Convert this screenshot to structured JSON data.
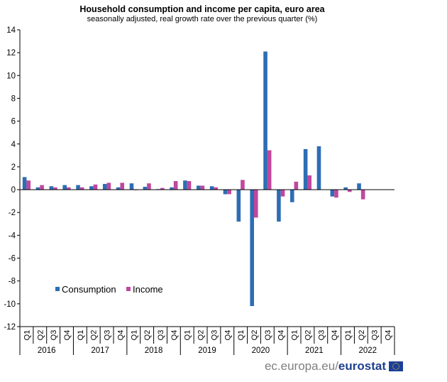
{
  "chart_data": {
    "type": "bar",
    "title": "Household consumption and income per capita, euro area",
    "subtitle": "seasonally adjusted, real growth rate over the previous quarter (%)",
    "ylim": [
      -12,
      14
    ],
    "yticks": [
      "14",
      "12",
      "10",
      "8",
      "6",
      "4",
      "2",
      "0",
      "-2",
      "-4",
      "-6",
      "-8",
      "-10",
      "-12"
    ],
    "quarters": [
      "Q1",
      "Q2",
      "Q3",
      "Q4"
    ],
    "years": [
      "2016",
      "2017",
      "2018",
      "2019",
      "2020",
      "2021",
      "2022"
    ],
    "categories": [
      "2016 Q1",
      "2016 Q2",
      "2016 Q3",
      "2016 Q4",
      "2017 Q1",
      "2017 Q2",
      "2017 Q3",
      "2017 Q4",
      "2018 Q1",
      "2018 Q2",
      "2018 Q3",
      "2018 Q4",
      "2019 Q1",
      "2019 Q2",
      "2019 Q3",
      "2019 Q4",
      "2020 Q1",
      "2020 Q2",
      "2020 Q3",
      "2020 Q4",
      "2021 Q1",
      "2021 Q2",
      "2021 Q3",
      "2021 Q4",
      "2022 Q1",
      "2022 Q2",
      "2022 Q3",
      "2022 Q4"
    ],
    "series": [
      {
        "name": "Consumption",
        "color": "#2e6db4",
        "values": [
          1.1,
          0.2,
          0.3,
          0.4,
          0.4,
          0.3,
          0.5,
          0.2,
          0.55,
          0.25,
          0.05,
          0.2,
          0.8,
          0.35,
          0.3,
          -0.4,
          -2.8,
          -10.2,
          12.1,
          -2.8,
          -1.1,
          3.55,
          3.8,
          -0.6,
          0.2,
          0.55,
          null,
          null
        ]
      },
      {
        "name": "Income",
        "color": "#c0479e",
        "values": [
          0.8,
          0.4,
          0.2,
          0.2,
          0.2,
          0.45,
          0.6,
          0.6,
          -0.05,
          0.55,
          0.15,
          0.75,
          0.75,
          0.35,
          0.2,
          -0.4,
          0.85,
          -2.45,
          3.45,
          -0.6,
          0.7,
          1.25,
          null,
          -0.7,
          -0.2,
          -0.85,
          null,
          null
        ]
      }
    ],
    "legend_position": "bottom-left",
    "grid": false
  },
  "branding": {
    "site": "ec.europa.eu/",
    "name": "eurostat"
  }
}
